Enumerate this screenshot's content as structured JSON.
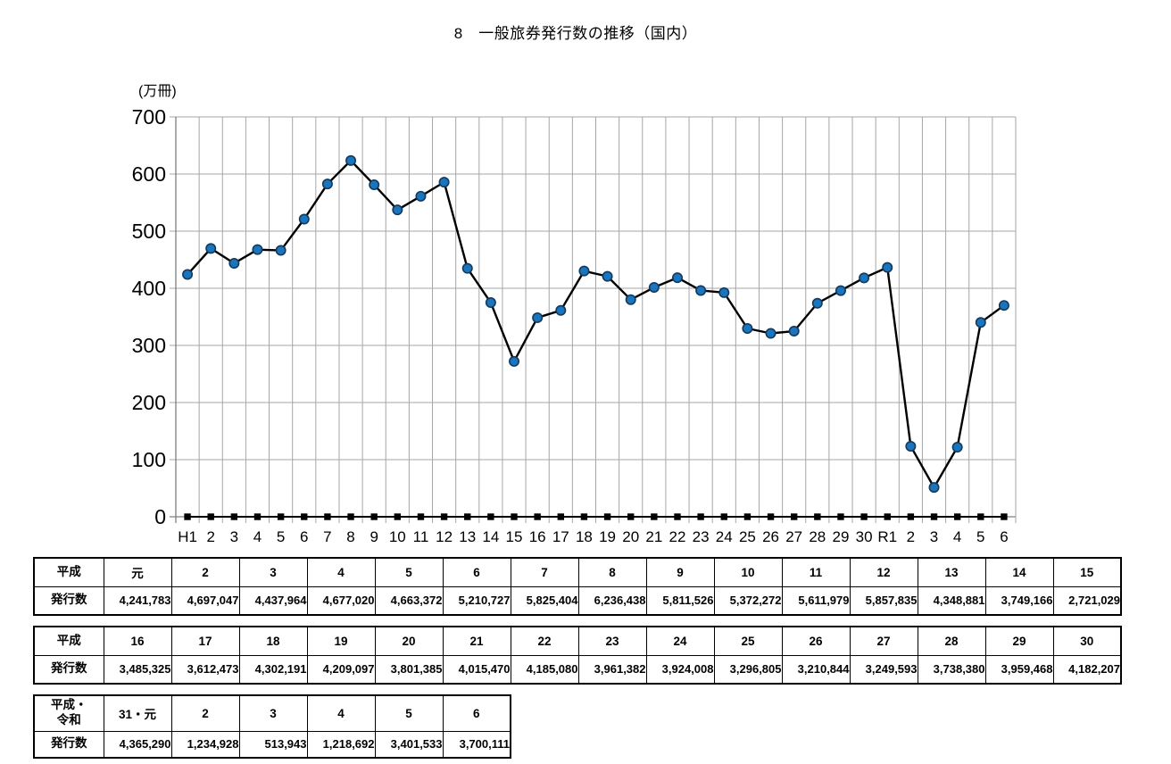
{
  "page": {
    "title": "8　一般旅券発行数の推移（国内）"
  },
  "chart_data": {
    "type": "line",
    "title": "8　一般旅券発行数の推移（国内）",
    "unit_label": "(万冊)",
    "categories": [
      "H1",
      "2",
      "3",
      "4",
      "5",
      "6",
      "7",
      "8",
      "9",
      "10",
      "11",
      "12",
      "13",
      "14",
      "15",
      "16",
      "17",
      "18",
      "19",
      "20",
      "21",
      "22",
      "23",
      "24",
      "25",
      "26",
      "27",
      "28",
      "29",
      "30",
      "R1",
      "2",
      "3",
      "4",
      "5",
      "6"
    ],
    "values": [
      4241783,
      4697047,
      4437964,
      4677020,
      4663372,
      5210727,
      5825404,
      6236438,
      5811526,
      5372272,
      5611979,
      5857835,
      4348881,
      3749166,
      2721029,
      3485325,
      3612473,
      4302191,
      4209097,
      3801385,
      4015470,
      4185080,
      3961382,
      3924008,
      3296805,
      3210844,
      3249593,
      3738380,
      3959468,
      4182207,
      4365290,
      1234928,
      513943,
      1218692,
      3401533,
      3700111
    ],
    "value_divisor": 10000,
    "ylim": [
      0,
      700
    ],
    "ytick_step": 100,
    "grid": "on",
    "legend": "none",
    "baseline_series": {
      "marker": "square",
      "value": 0
    },
    "colors": {
      "line": "#000000",
      "marker_fill": "#1B75BC",
      "marker_edge": "#123A5E",
      "baseline": "#000000",
      "gridline": "#A6A6A6",
      "axis": "#7F7F7F",
      "text": "#000000"
    }
  },
  "tables": [
    {
      "header_label": "平成",
      "value_label": "発行数",
      "years": [
        "元",
        "2",
        "3",
        "4",
        "5",
        "6",
        "7",
        "8",
        "9",
        "10",
        "11",
        "12",
        "13",
        "14",
        "15"
      ],
      "values": [
        "4,241,783",
        "4,697,047",
        "4,437,964",
        "4,677,020",
        "4,663,372",
        "5,210,727",
        "5,825,404",
        "6,236,438",
        "5,811,526",
        "5,372,272",
        "5,611,979",
        "5,857,835",
        "4,348,881",
        "3,749,166",
        "2,721,029"
      ]
    },
    {
      "header_label": "平成",
      "value_label": "発行数",
      "years": [
        "16",
        "17",
        "18",
        "19",
        "20",
        "21",
        "22",
        "23",
        "24",
        "25",
        "26",
        "27",
        "28",
        "29",
        "30"
      ],
      "values": [
        "3,485,325",
        "3,612,473",
        "4,302,191",
        "4,209,097",
        "3,801,385",
        "4,015,470",
        "4,185,080",
        "3,961,382",
        "3,924,008",
        "3,296,805",
        "3,210,844",
        "3,249,593",
        "3,738,380",
        "3,959,468",
        "4,182,207"
      ]
    },
    {
      "header_label": "平成・\n令和",
      "value_label": "発行数",
      "years": [
        "31・元",
        "2",
        "3",
        "4",
        "5",
        "6"
      ],
      "values": [
        "4,365,290",
        "1,234,928",
        "513,943",
        "1,218,692",
        "3,401,533",
        "3,700,111"
      ]
    }
  ]
}
